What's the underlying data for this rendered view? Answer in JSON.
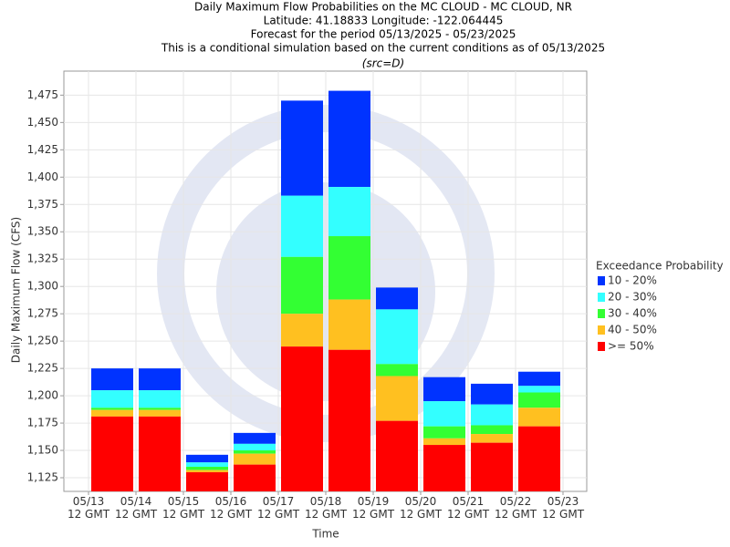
{
  "chart_data": {
    "type": "bar",
    "title": [
      "Daily Maximum Flow Probabilities on the MC CLOUD - MC CLOUD, NR",
      "Latitude: 41.18833 Longitude: -122.064445",
      "Forecast for the period 05/13/2025 - 05/23/2025",
      "This is a conditional simulation based on the current conditions as of 05/13/2025"
    ],
    "subtitle": "(src=D)",
    "y_label": "Daily Maximum Flow (CFS)",
    "x_label": "Time",
    "legend_title": "Exceedance Probability",
    "xticks": [
      "05/13\n12 GMT",
      "05/14\n12 GMT",
      "05/15\n12 GMT",
      "05/16\n12 GMT",
      "05/17\n12 GMT",
      "05/18\n12 GMT",
      "05/19\n12 GMT",
      "05/20\n12 GMT",
      "05/21\n12 GMT",
      "05/22\n12 GMT",
      "05/23\n12 GMT"
    ],
    "ylim": [
      1112.5,
      1497
    ],
    "yticks": [
      {
        "value": 1125,
        "label": "1,125"
      },
      {
        "value": 1150,
        "label": "1,150"
      },
      {
        "value": 1175,
        "label": "1,175"
      },
      {
        "value": 1200,
        "label": "1,200"
      },
      {
        "value": 1225,
        "label": "1,225"
      },
      {
        "value": 1250,
        "label": "1,250"
      },
      {
        "value": 1275,
        "label": "1,275"
      },
      {
        "value": 1300,
        "label": "1,300"
      },
      {
        "value": 1325,
        "label": "1,325"
      },
      {
        "value": 1350,
        "label": "1,350"
      },
      {
        "value": 1375,
        "label": "1,375"
      },
      {
        "value": 1400,
        "label": "1,400"
      },
      {
        "value": 1425,
        "label": "1,425"
      },
      {
        "value": 1450,
        "label": "1,450"
      },
      {
        "value": 1475,
        "label": "1,475"
      }
    ],
    "grid": true,
    "series": [
      {
        "name": "10 - 20%",
        "color": "#0033ff",
        "values": [
          1225,
          1225,
          1146,
          1166,
          1470,
          1479,
          1299,
          1217,
          1211,
          1222
        ]
      },
      {
        "name": "20 - 30%",
        "color": "#33ffff",
        "values": [
          1205,
          1205,
          1139,
          1156,
          1383,
          1391,
          1279,
          1195,
          1192,
          1209
        ]
      },
      {
        "name": "30 - 40%",
        "color": "#33ff33",
        "values": [
          1189,
          1189,
          1135,
          1150,
          1327,
          1346,
          1229,
          1172,
          1173,
          1203
        ]
      },
      {
        "name": "40 - 50%",
        "color": "#ffc020",
        "values": [
          1187,
          1187,
          1132,
          1147,
          1275,
          1288,
          1218,
          1161,
          1165,
          1189
        ]
      },
      {
        "name": ">= 50%",
        "color": "#ff0000",
        "values": [
          1181,
          1181,
          1130,
          1137,
          1245,
          1242,
          1177,
          1155,
          1157,
          1172
        ]
      }
    ]
  }
}
